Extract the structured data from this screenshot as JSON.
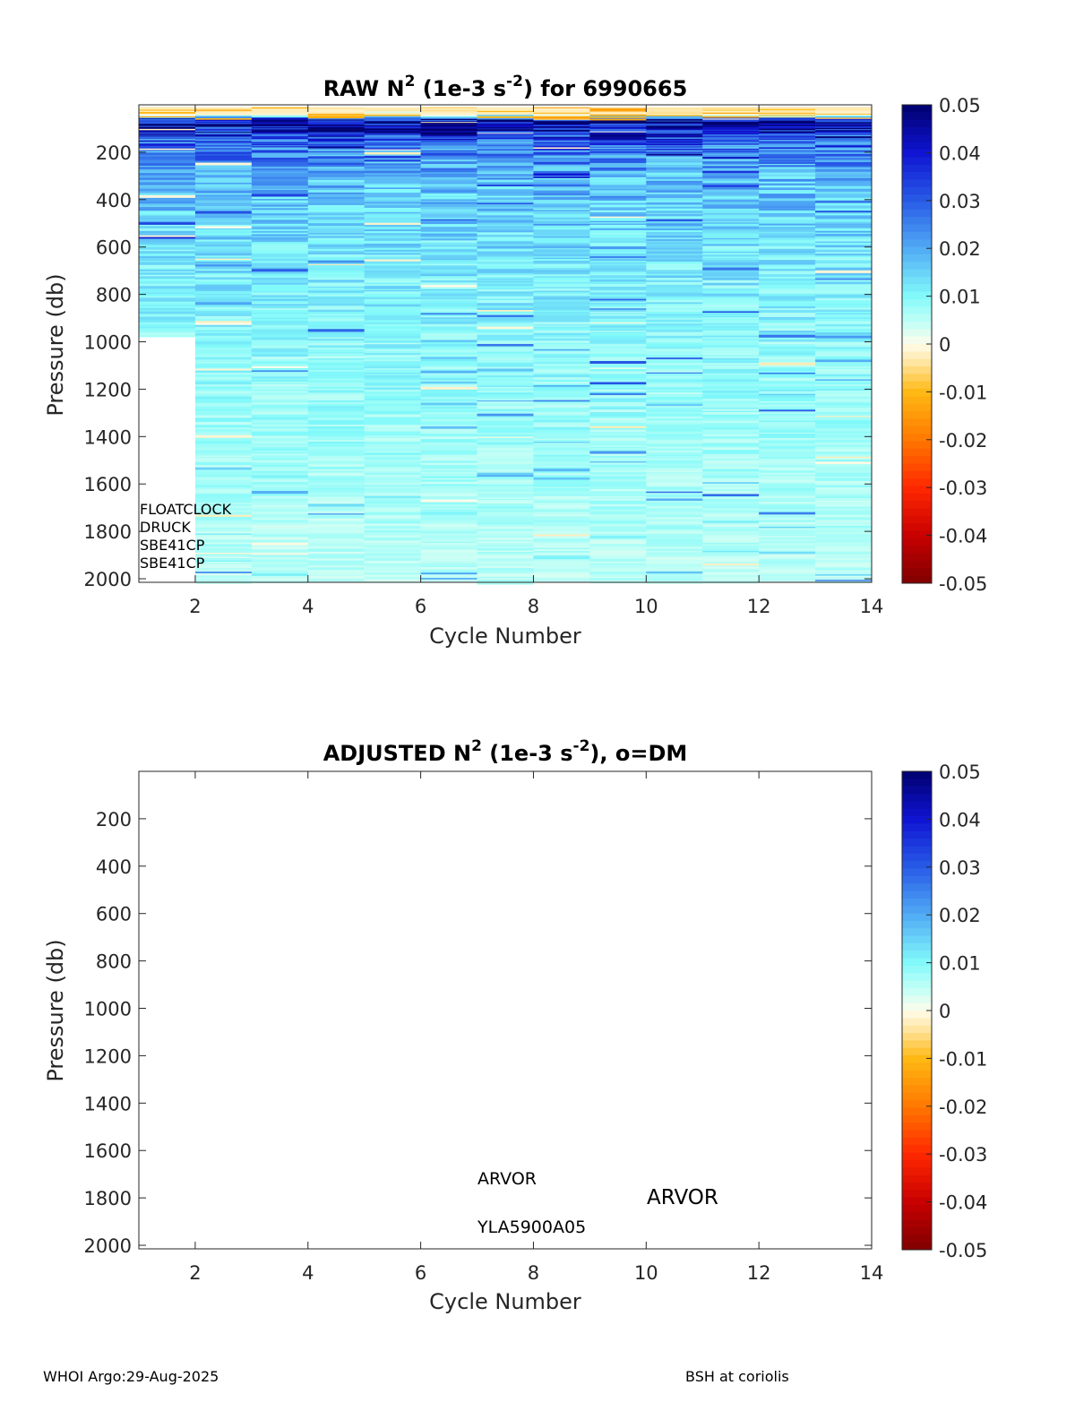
{
  "chart_data": [
    {
      "type": "heatmap",
      "title": {
        "main": "RAW N",
        "sup1": "2",
        "mid": " (1e-3 s",
        "sup2": "-2",
        "end": ") for 6990665"
      },
      "xlabel": "Cycle Number",
      "ylabel": "Pressure (db)",
      "xlim": [
        1,
        14
      ],
      "ylim": [
        0,
        2015
      ],
      "y_reversed": true,
      "xticks": [
        2,
        4,
        6,
        8,
        10,
        12,
        14
      ],
      "yticks": [
        200,
        400,
        600,
        800,
        1000,
        1200,
        1400,
        1600,
        1800,
        2000
      ],
      "cycles": [
        1,
        2,
        3,
        4,
        5,
        6,
        7,
        8,
        9,
        10,
        11,
        12,
        13
      ],
      "max_pressure": [
        975,
        2015,
        2015,
        2015,
        2015,
        2015,
        2015,
        2015,
        2015,
        2015,
        2015,
        2015,
        2015
      ],
      "mean_profile": {
        "pressure": [
          0,
          40,
          60,
          80,
          150,
          300,
          600,
          1000,
          1500,
          2015
        ],
        "n2": [
          -0.004,
          -0.002,
          0.04,
          0.048,
          0.03,
          0.018,
          0.013,
          0.009,
          0.007,
          0.005
        ]
      },
      "colorbar": {
        "min": -0.05,
        "max": 0.05,
        "ticks": [
          "0.05",
          "0.04",
          "0.03",
          "0.02",
          "0.01",
          "0",
          "-0.01",
          "-0.02",
          "-0.03",
          "-0.04",
          "-0.05"
        ]
      },
      "annotations": [
        "FLOATCLOCK",
        "DRUCK",
        "SBE41CP",
        "SBE41CP"
      ]
    },
    {
      "type": "heatmap",
      "title": {
        "main": "ADJUSTED N",
        "sup1": "2",
        "mid": " (1e-3 s",
        "sup2": "-2",
        "end": "), o=DM"
      },
      "xlabel": "Cycle Number",
      "ylabel": "Pressure (db)",
      "xlim": [
        1,
        14
      ],
      "ylim": [
        0,
        2015
      ],
      "y_reversed": true,
      "xticks": [
        2,
        4,
        6,
        8,
        10,
        12,
        14
      ],
      "yticks": [
        200,
        400,
        600,
        800,
        1000,
        1200,
        1400,
        1600,
        1800,
        2000
      ],
      "values": [],
      "colorbar": {
        "min": -0.05,
        "max": 0.05,
        "ticks": [
          "0.05",
          "0.04",
          "0.03",
          "0.02",
          "0.01",
          "0",
          "-0.01",
          "-0.02",
          "-0.03",
          "-0.04",
          "-0.05"
        ]
      },
      "annotations": {
        "platform_small": "ARVOR",
        "platform_large": "ARVOR",
        "sensor": "YLA5900A05"
      }
    }
  ],
  "footer": {
    "left": "WHOI Argo:29-Aug-2025",
    "right": "BSH at coriolis"
  }
}
